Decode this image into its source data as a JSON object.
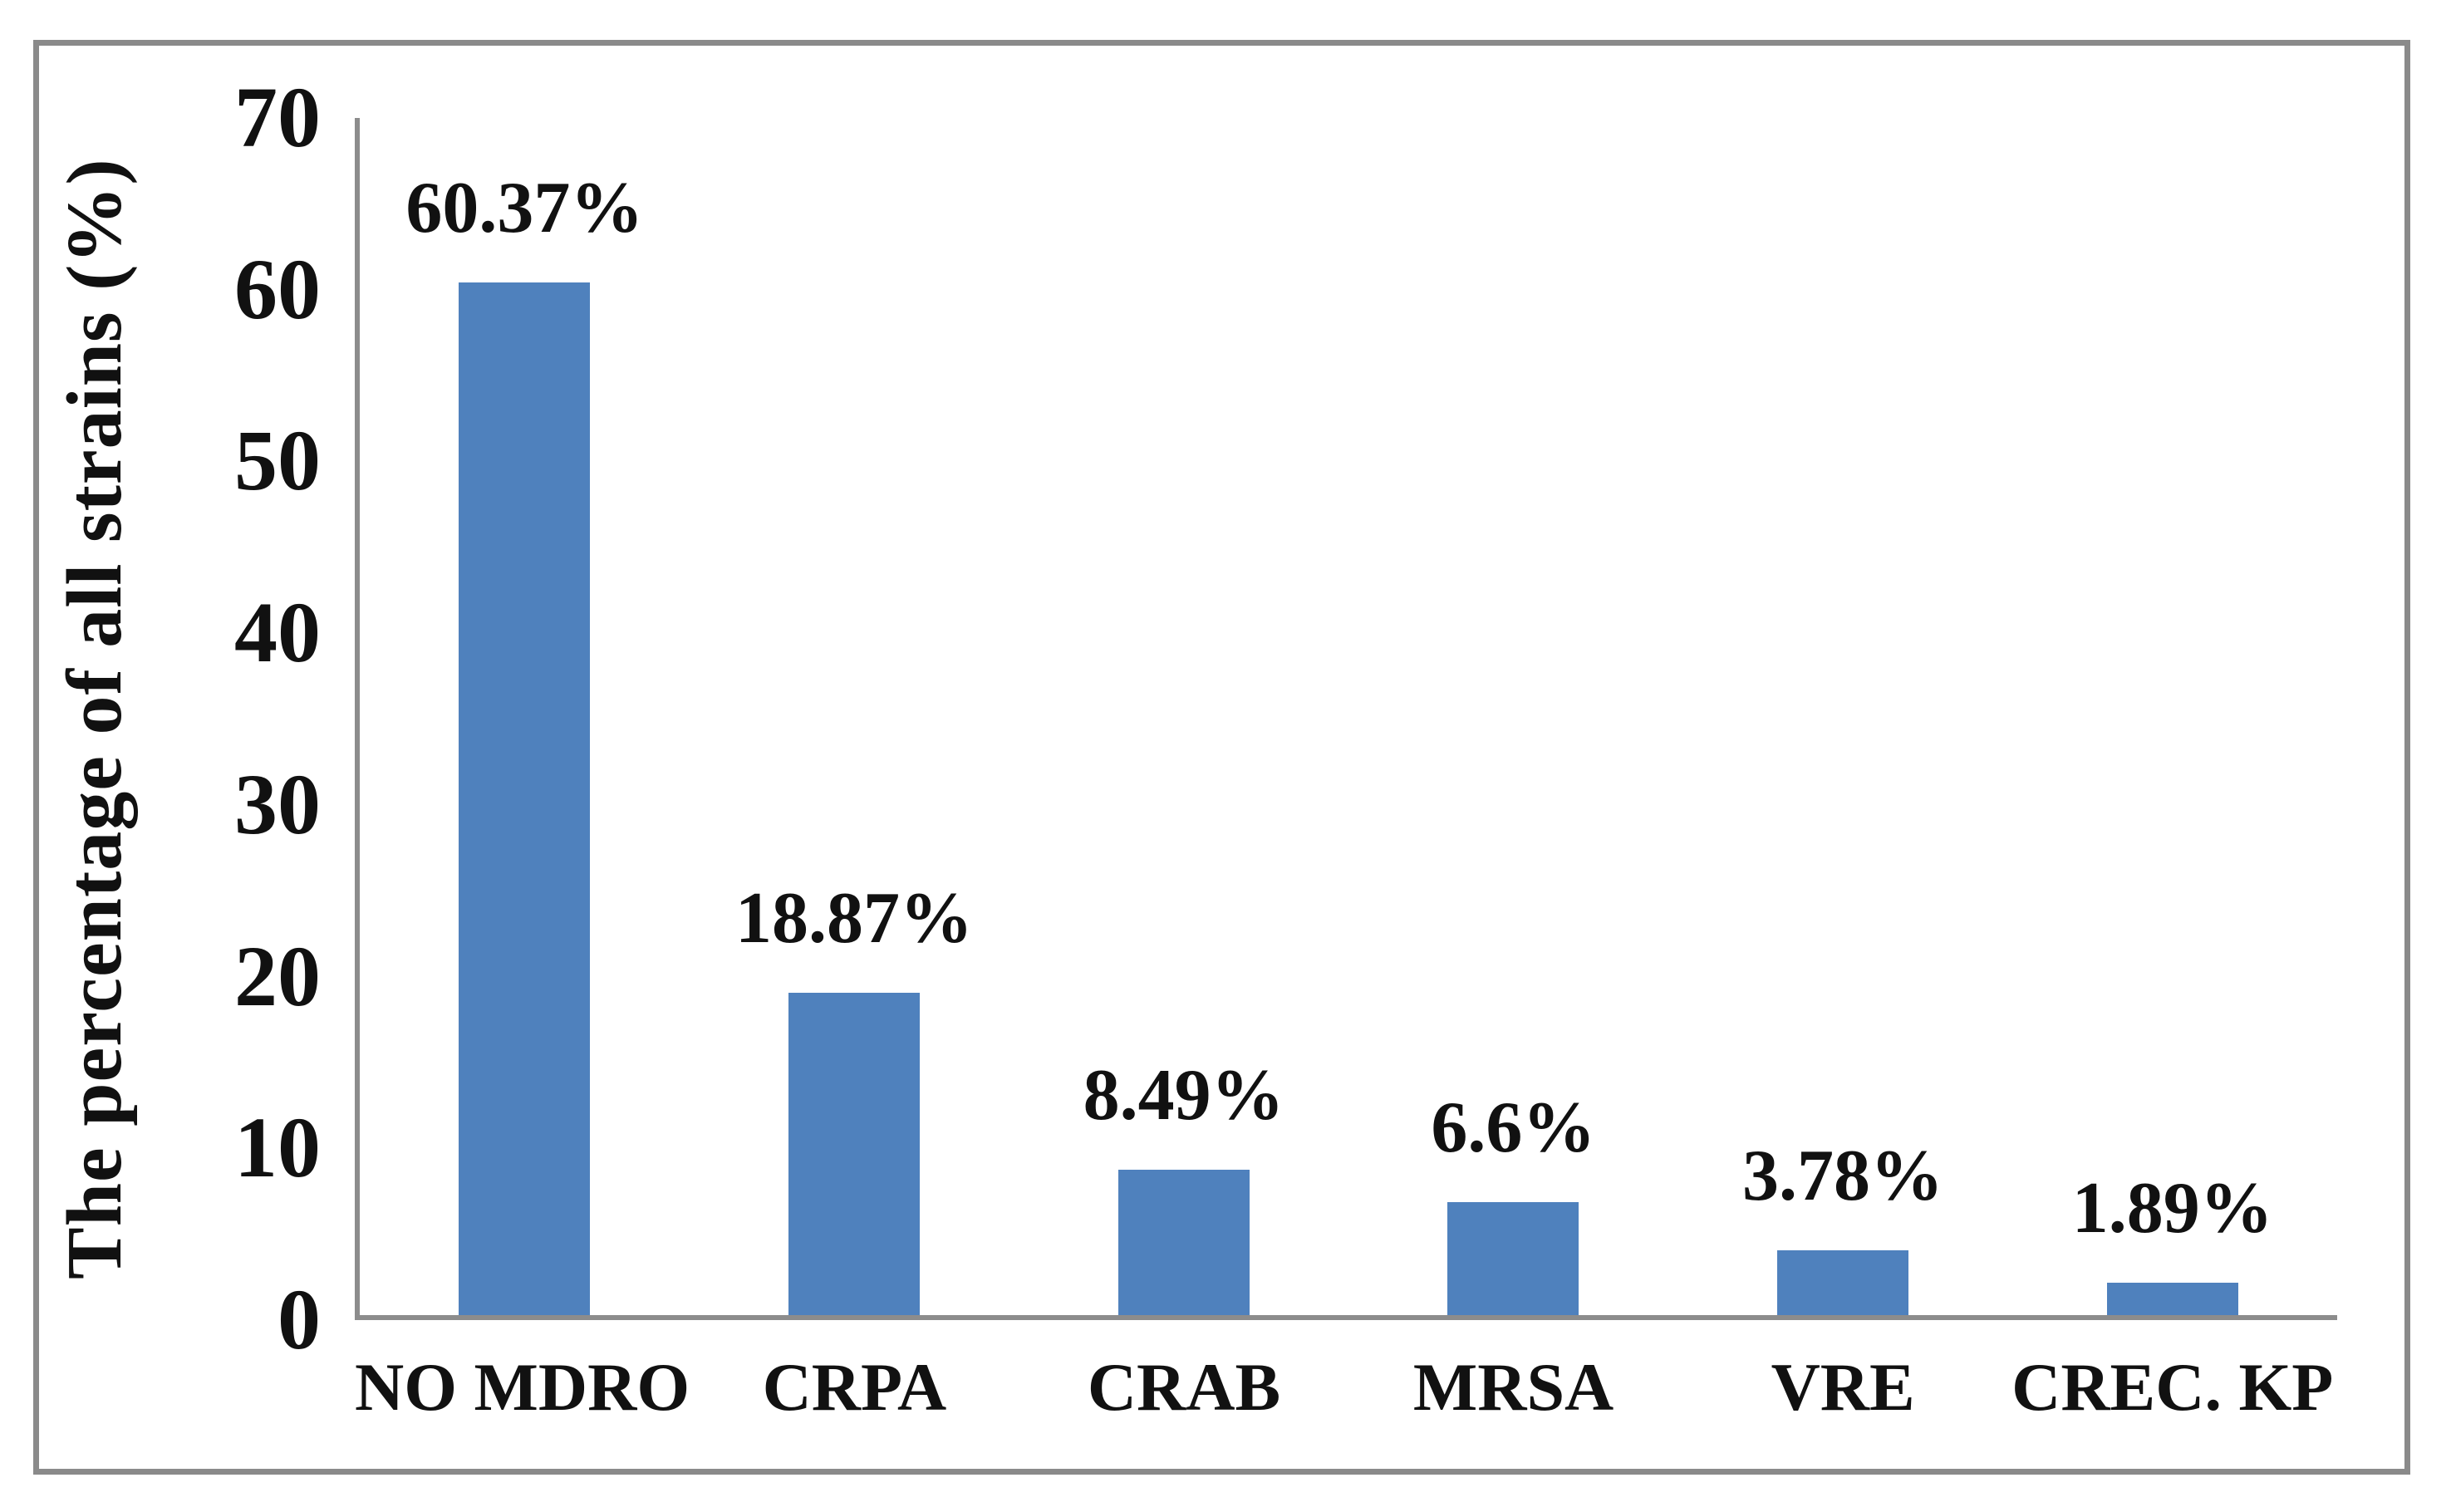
{
  "figure": {
    "background": "#ffffff",
    "frame_color": "#8a8a8a",
    "axis_color": "#8c8c8c",
    "text_color": "#111111"
  },
  "chart_data": {
    "type": "bar",
    "title": "",
    "xlabel": "",
    "ylabel": "The percentage of all strains (%)",
    "categories": [
      "NO MDRO",
      "CRPA",
      "CRAB",
      "MRSA",
      "VRE",
      "CREC. KP"
    ],
    "values": [
      60.37,
      18.87,
      8.49,
      6.6,
      3.78,
      1.89
    ],
    "value_labels": [
      "60.37%",
      "18.87%",
      "8.49%",
      "6.6%",
      "3.78%",
      "1.89%"
    ],
    "ylim": [
      0,
      70
    ],
    "yticks": [
      0,
      10,
      20,
      30,
      40,
      50,
      60,
      70
    ],
    "grid": false,
    "legend": "none",
    "bar_color": "#4f81bd"
  }
}
